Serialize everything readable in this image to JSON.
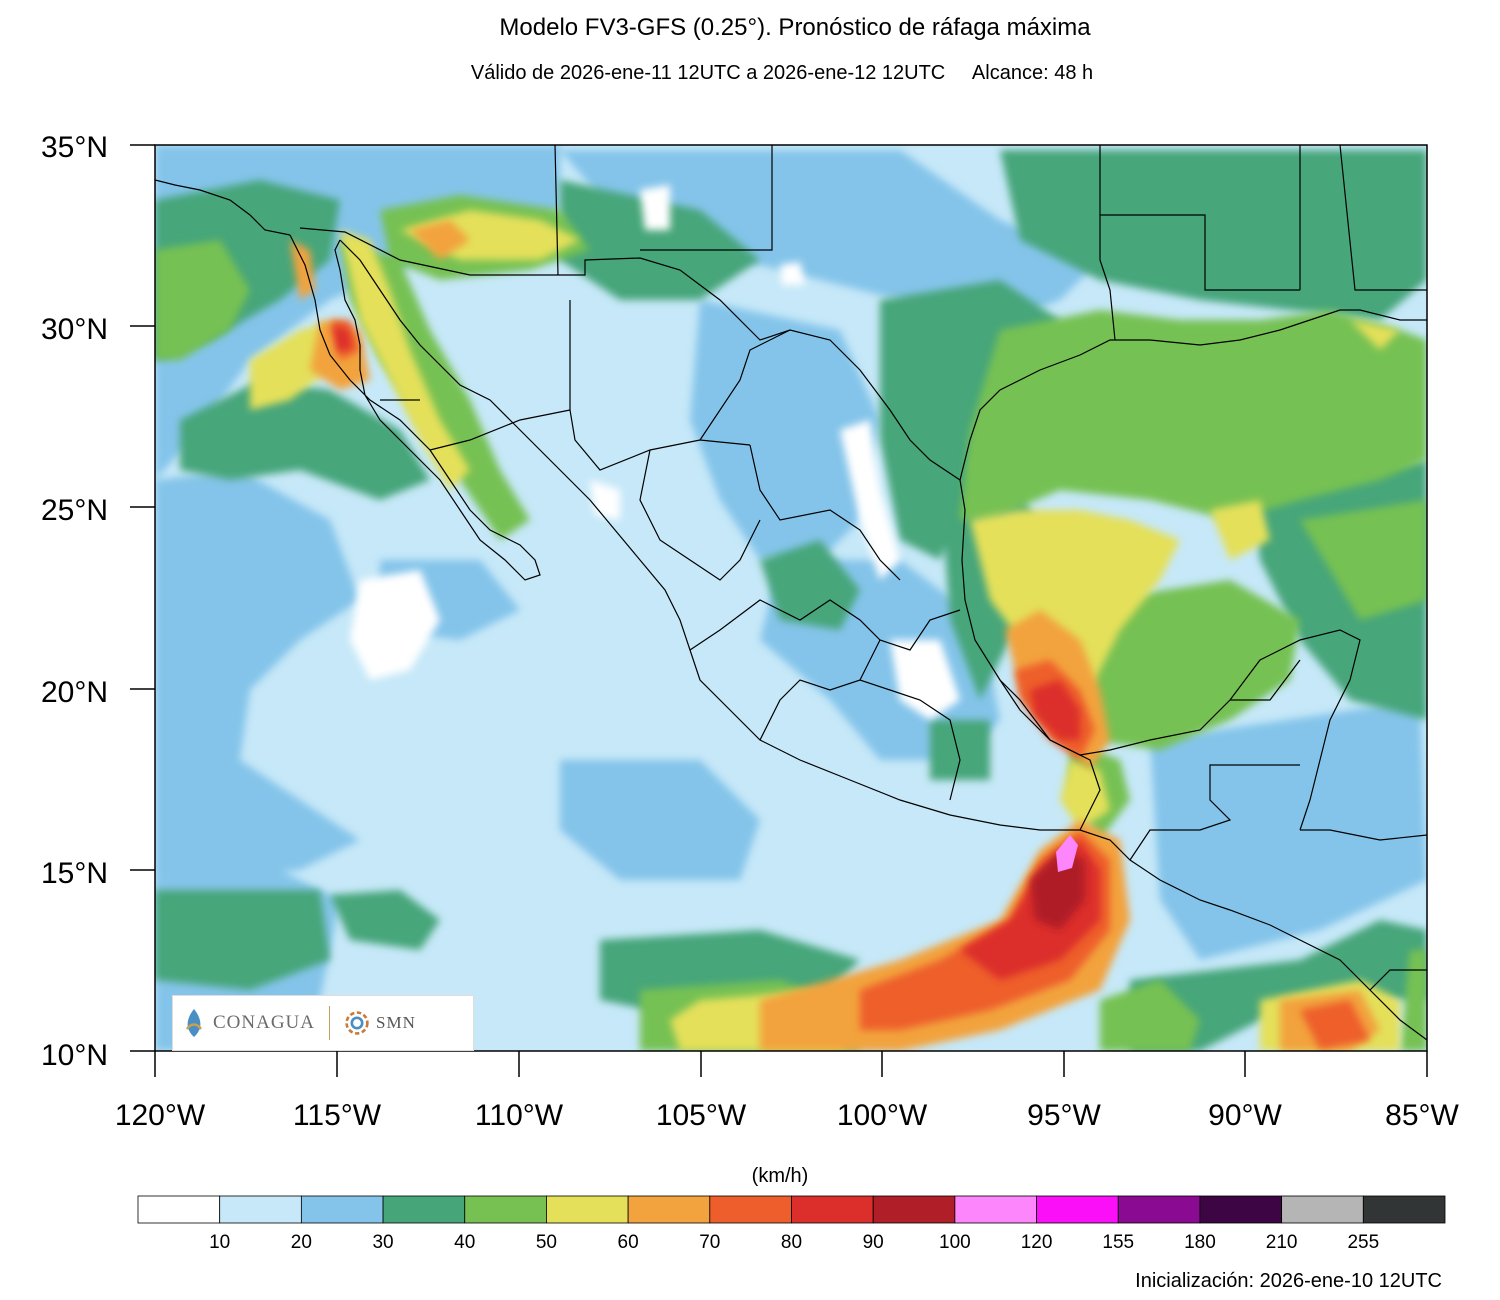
{
  "title": "Modelo FV3-GFS (0.25°). Pronóstico de ráfaga máxima",
  "subtitle": "Válido de 2026-ene-11 12UTC a 2026-ene-12 12UTC     Alcance: 48 h",
  "lat_ticks": [
    "35°N",
    "30°N",
    "25°N",
    "20°N",
    "15°N",
    "10°N"
  ],
  "lon_ticks": [
    "120°W",
    "115°W",
    "110°W",
    "105°W",
    "100°W",
    "95°W",
    "90°W",
    "85°W"
  ],
  "logos": {
    "left": "CONAGUA",
    "right": "SMN"
  },
  "colorbar": {
    "unit": "(km/h)",
    "colors": [
      "#ffffff",
      "#c6e8f8",
      "#84c4ea",
      "#46a67a",
      "#76c152",
      "#e4e05a",
      "#f2a33e",
      "#ee5e2c",
      "#dc2e2a",
      "#b01f27",
      "#fd86fc",
      "#fb0ef8",
      "#8a0a91",
      "#3e0544",
      "#b5b5b5",
      "#323535"
    ],
    "labels": [
      "10",
      "20",
      "30",
      "40",
      "50",
      "60",
      "70",
      "80",
      "90",
      "100",
      "120",
      "155",
      "180",
      "210",
      "255"
    ]
  },
  "footer": "Inicialización: 2026-ene-10 12UTC"
}
